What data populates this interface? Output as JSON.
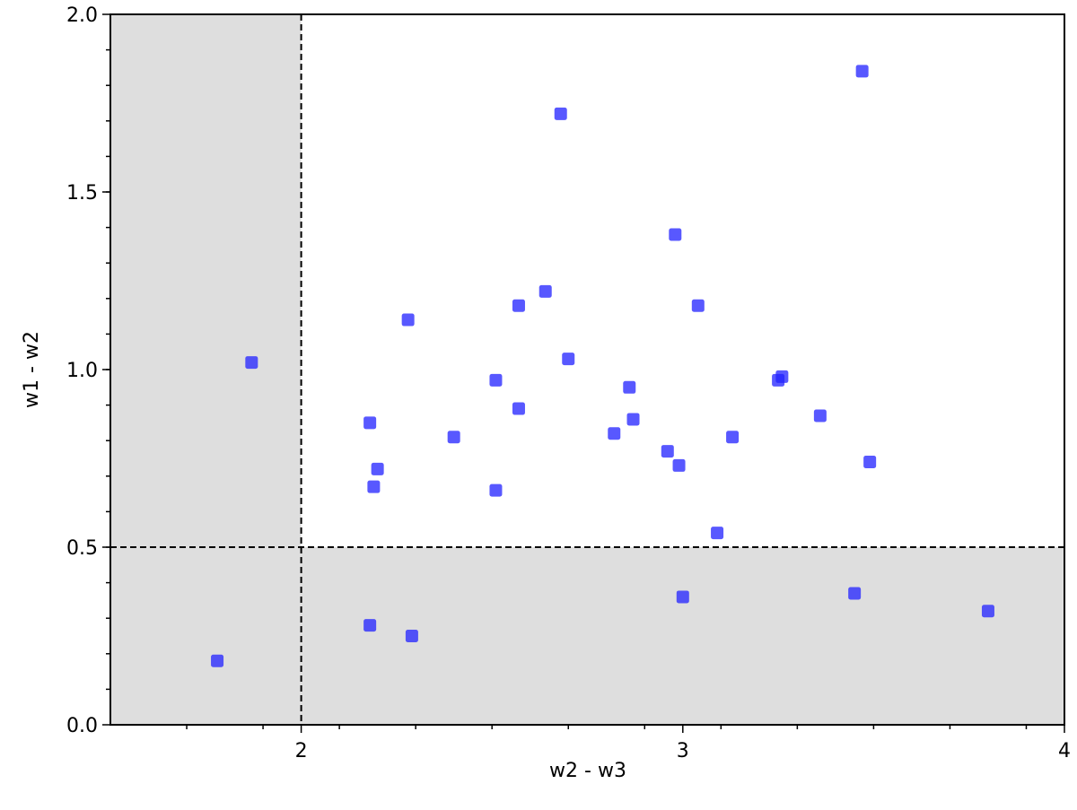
{
  "chart_data": {
    "type": "scatter",
    "x_label": "w2 - w3",
    "y_label": "w1 - w2",
    "xlim": [
      1.5,
      4
    ],
    "ylim": [
      0,
      2
    ],
    "xticks": [
      2,
      3,
      4
    ],
    "yticks": [
      {
        "value": 0,
        "label": "0.0"
      },
      {
        "value": 0.5,
        "label": "0.5"
      },
      {
        "value": 1,
        "label": "1.0"
      },
      {
        "value": 1.5,
        "label": "1.5"
      },
      {
        "value": 2,
        "label": "2.0"
      }
    ],
    "x_minor_step": 0.2,
    "y_minor_step": 0.1,
    "vline": 2,
    "hline": 0.5,
    "shade_color": "#dedede",
    "color": "#2020ff",
    "x": [
      1.87,
      1.78,
      2.18,
      2.2,
      2.19,
      2.28,
      2.18,
      2.29,
      2.4,
      2.51,
      2.51,
      2.57,
      2.57,
      2.64,
      2.68,
      2.7,
      2.82,
      2.86,
      2.87,
      2.96,
      2.98,
      2.99,
      3.0,
      3.04,
      3.09,
      3.13,
      3.25,
      3.26,
      3.36,
      3.45,
      3.47,
      3.49,
      3.8
    ],
    "values": [
      1.02,
      0.18,
      0.85,
      0.72,
      0.67,
      1.14,
      0.28,
      0.25,
      0.81,
      0.97,
      0.66,
      1.18,
      0.89,
      1.22,
      1.72,
      1.03,
      0.82,
      0.95,
      0.86,
      0.77,
      1.38,
      0.73,
      0.36,
      1.18,
      0.54,
      0.81,
      0.97,
      0.98,
      0.87,
      0.37,
      1.84,
      0.74,
      0.32
    ]
  }
}
